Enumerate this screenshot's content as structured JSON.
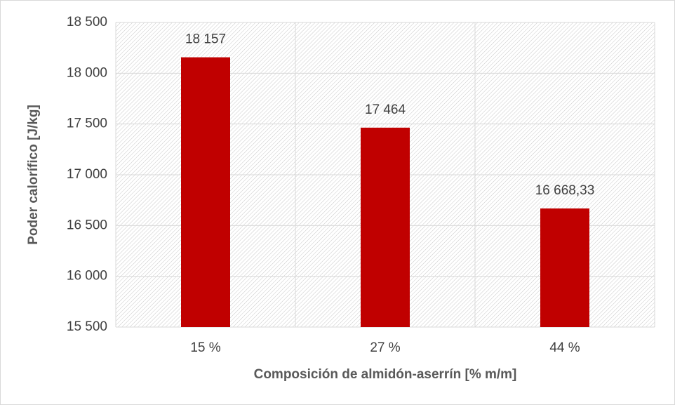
{
  "chart_data": {
    "type": "bar",
    "categories": [
      "15 %",
      "27 %",
      "44 %"
    ],
    "values": [
      18157,
      17464,
      16668.33
    ],
    "value_labels": [
      "18 157",
      "17 464",
      "16 668,33"
    ],
    "color": "#c00000",
    "x_label": "Composición de almidón-aserrín [% m/m]",
    "y_label": "Poder calorífico [J/kg]",
    "ylim": [
      15500,
      18500
    ],
    "yticks": [
      {
        "value": 15500,
        "label": "15 500"
      },
      {
        "value": 16000,
        "label": "16 000"
      },
      {
        "value": 16500,
        "label": "16 500"
      },
      {
        "value": 17000,
        "label": "17 000"
      },
      {
        "value": 17500,
        "label": "17 500"
      },
      {
        "value": 18000,
        "label": "18 000"
      },
      {
        "value": 18500,
        "label": "18 500"
      }
    ],
    "grid": true
  }
}
